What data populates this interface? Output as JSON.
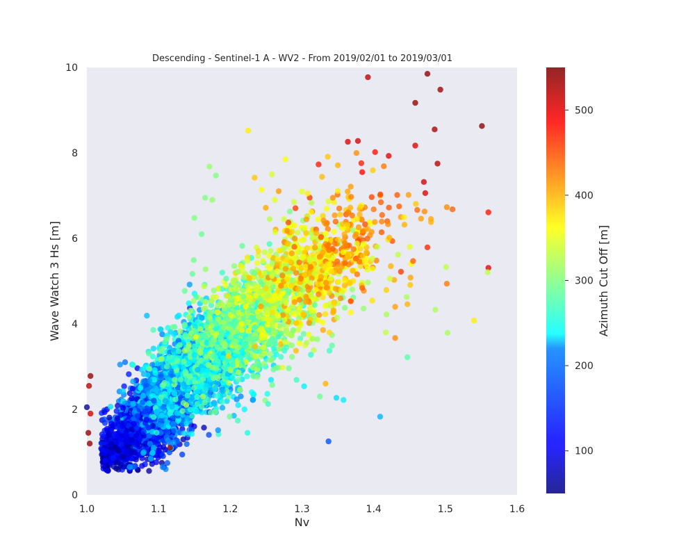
{
  "chart_data": {
    "type": "scatter",
    "title": "Descending - Sentinel-1 A - WV2 - From 2019/02/01 to 2019/03/01",
    "xlabel": "Nv",
    "ylabel": "Wave Watch 3 Hs [m]",
    "colorbar_label": "Azimuth Cut Off [m]",
    "xlim": [
      1.0,
      1.6
    ],
    "ylim": [
      0,
      10
    ],
    "xticks": [
      "1.0",
      "1.1",
      "1.2",
      "1.3",
      "1.4",
      "1.5",
      "1.6"
    ],
    "yticks": [
      "0",
      "2",
      "4",
      "6",
      "8",
      "10"
    ],
    "colorbar_range": [
      50,
      550
    ],
    "colorbar_ticks": [
      "100",
      "200",
      "300",
      "400",
      "500"
    ],
    "colormap": "jet",
    "background_color": "#eaeaf2",
    "grid": false,
    "series": [
      {
        "points": [
          [
            1.475,
            9.85,
            545
          ],
          [
            1.392,
            9.77,
            520
          ],
          [
            1.493,
            9.48,
            535
          ],
          [
            1.458,
            9.17,
            540
          ],
          [
            1.485,
            8.55,
            530
          ],
          [
            1.551,
            8.63,
            545
          ],
          [
            1.458,
            8.17,
            505
          ],
          [
            1.378,
            8.28,
            510
          ],
          [
            1.364,
            8.26,
            505
          ],
          [
            1.421,
            7.93,
            500
          ],
          [
            1.402,
            8.02,
            480
          ],
          [
            1.489,
            7.75,
            525
          ],
          [
            1.384,
            7.55,
            485
          ],
          [
            1.47,
            7.32,
            510
          ],
          [
            1.472,
            7.06,
            505
          ],
          [
            1.225,
            8.52,
            370
          ],
          [
            1.171,
            7.68,
            310
          ],
          [
            1.18,
            7.47,
            300
          ],
          [
            1.277,
            7.85,
            360
          ],
          [
            1.258,
            7.5,
            340
          ],
          [
            1.336,
            7.91,
            390
          ],
          [
            1.56,
            6.61,
            480
          ],
          [
            1.51,
            6.68,
            440
          ],
          [
            1.502,
            6.73,
            420
          ],
          [
            1.471,
            6.63,
            420
          ],
          [
            1.466,
            6.46,
            410
          ],
          [
            1.48,
            6.38,
            400
          ],
          [
            1.475,
            5.79,
            470
          ],
          [
            1.56,
            5.31,
            500
          ],
          [
            1.559,
            5.21,
            330
          ],
          [
            1.501,
            5.33,
            330
          ],
          [
            1.502,
            4.94,
            430
          ],
          [
            1.54,
            4.08,
            370
          ],
          [
            1.503,
            3.79,
            320
          ],
          [
            1.486,
            4.33,
            320
          ],
          [
            1.447,
            3.22,
            280
          ],
          [
            1.43,
            3.67,
            420
          ],
          [
            1.409,
            1.83,
            200
          ],
          [
            1.337,
            1.25,
            150
          ],
          [
            1.224,
            1.45,
            250
          ],
          [
            1.11,
            0.6,
            180
          ],
          [
            1.06,
            0.65,
            190
          ],
          [
            1.005,
            2.78,
            540
          ],
          [
            1.003,
            2.55,
            520
          ],
          [
            1.002,
            1.45,
            540
          ],
          [
            1.004,
            1.2,
            540
          ],
          [
            1.0,
            2.05,
            60
          ],
          [
            1.116,
            1.1,
            530
          ],
          [
            1.005,
            1.9,
            510
          ],
          [
            1.333,
            2.6,
            400
          ],
          [
            1.325,
            2.3,
            290
          ],
          [
            1.358,
            2.22,
            230
          ],
          [
            1.348,
            2.27,
            220
          ],
          [
            1.303,
            2.54,
            230
          ],
          [
            1.23,
            2.4,
            240
          ],
          [
            1.211,
            2.1,
            230
          ],
          [
            1.15,
            6.48,
            300
          ],
          [
            1.16,
            6.1,
            290
          ],
          [
            1.175,
            6.9,
            310
          ],
          [
            1.165,
            6.95,
            300
          ],
          [
            1.234,
            7.42,
            390
          ],
          [
            1.244,
            7.14,
            360
          ],
          [
            1.308,
            7.05,
            370
          ],
          [
            1.328,
            7.44,
            395
          ],
          [
            1.35,
            7.71,
            400
          ],
          [
            1.368,
            7.21,
            410
          ],
          [
            1.388,
            6.33,
            450
          ],
          [
            1.4,
            6.68,
            430
          ],
          [
            1.42,
            6.33,
            420
          ],
          [
            1.443,
            6.32,
            400
          ],
          [
            1.424,
            5.35,
            400
          ],
          [
            1.438,
            5.22,
            460
          ],
          [
            1.455,
            5.47,
            440
          ],
          [
            1.434,
            5.62,
            330
          ],
          [
            1.446,
            4.63,
            320
          ],
          [
            1.43,
            4.4,
            410
          ],
          [
            1.418,
            4.22,
            320
          ],
          [
            1.447,
            4.46,
            400
          ],
          [
            1.386,
            4.36,
            310
          ],
          [
            1.417,
            3.8,
            330
          ],
          [
            1.392,
            4.97,
            320
          ],
          [
            1.398,
            5.53,
            340
          ],
          [
            1.405,
            5.8,
            330
          ],
          [
            1.451,
            4.91,
            390
          ],
          [
            1.3,
            7.1,
            350
          ],
          [
            1.289,
            6.85,
            340
          ],
          [
            1.313,
            6.62,
            360
          ],
          [
            1.275,
            6.45,
            340
          ],
          [
            1.262,
            6.9,
            350
          ],
          [
            1.343,
            6.95,
            420
          ],
          [
            1.352,
            6.7,
            430
          ],
          [
            1.365,
            6.6,
            420
          ],
          [
            1.32,
            6.12,
            400
          ],
          [
            1.334,
            6.33,
            420
          ],
          [
            1.346,
            5.88,
            430
          ],
          [
            1.372,
            5.75,
            430
          ],
          [
            1.36,
            5.42,
            440
          ],
          [
            1.377,
            5.16,
            430
          ],
          [
            1.384,
            4.84,
            440
          ],
          [
            1.368,
            4.53,
            460
          ]
        ]
      }
    ],
    "cloud_components": [
      {
        "center": [
          1.09,
          1.8
        ],
        "spread": [
          0.03,
          0.6
        ],
        "count": 1300,
        "cut_off": [
          80,
          180
        ]
      },
      {
        "center": [
          1.14,
          2.8
        ],
        "spread": [
          0.038,
          0.7
        ],
        "count": 1100,
        "cut_off": [
          150,
          260
        ]
      },
      {
        "center": [
          1.2,
          3.7
        ],
        "spread": [
          0.042,
          0.8
        ],
        "count": 1000,
        "cut_off": [
          220,
          330
        ]
      },
      {
        "center": [
          1.27,
          4.6
        ],
        "spread": [
          0.045,
          0.85
        ],
        "count": 700,
        "cut_off": [
          280,
          380
        ]
      },
      {
        "center": [
          1.34,
          5.4
        ],
        "spread": [
          0.045,
          0.8
        ],
        "count": 420,
        "cut_off": [
          340,
          440
        ]
      },
      {
        "center": [
          1.04,
          1.1
        ],
        "spread": [
          0.018,
          0.35
        ],
        "count": 300,
        "cut_off": [
          60,
          130
        ]
      }
    ]
  }
}
